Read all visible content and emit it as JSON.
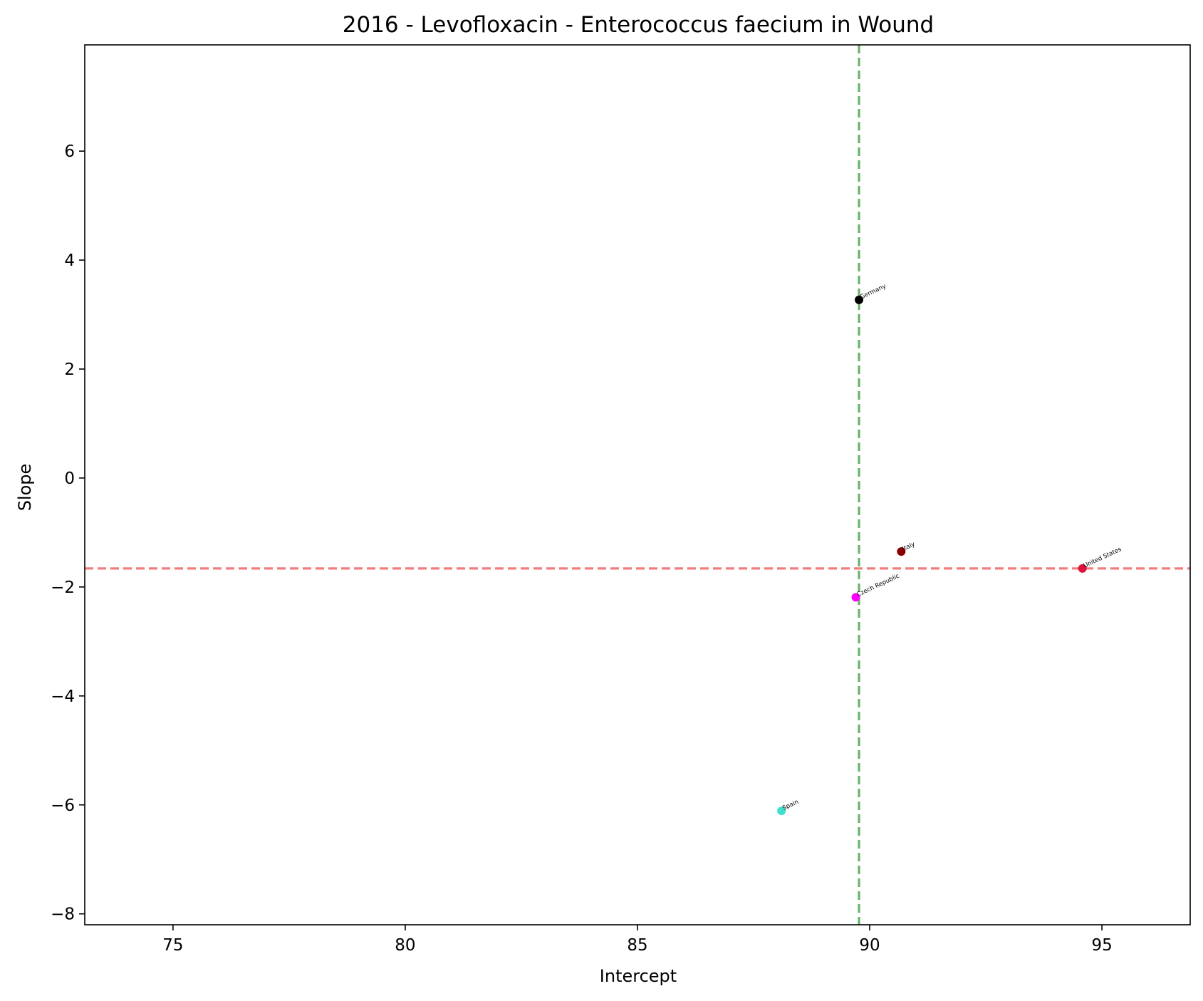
{
  "chart_data": {
    "type": "scatter",
    "title": "2016 - Levofloxacin - Enterococcus faecium in Wound",
    "xlabel": "Intercept",
    "ylabel": "Slope",
    "xlim": [
      73.1,
      96.9
    ],
    "ylim": [
      -8.2,
      7.95
    ],
    "xticks": [
      75,
      80,
      85,
      90,
      95
    ],
    "yticks": [
      -8,
      -6,
      -4,
      -2,
      0,
      2,
      4,
      6
    ],
    "grid": false,
    "legend": "none",
    "points": [
      {
        "label": "Germany",
        "x": 89.77,
        "y": 3.27,
        "color": "#000000"
      },
      {
        "label": "Italy",
        "x": 90.68,
        "y": -1.35,
        "color": "#8b0000"
      },
      {
        "label": "United States",
        "x": 94.58,
        "y": -1.66,
        "color": "#dc143c"
      },
      {
        "label": "Czech Republic",
        "x": 89.7,
        "y": -2.19,
        "color": "#ff00ff"
      },
      {
        "label": "Spain",
        "x": 88.1,
        "y": -6.11,
        "color": "#40e0d0"
      }
    ],
    "reference_lines": [
      {
        "orientation": "vertical",
        "value": 89.77,
        "color": "#5aaa5a",
        "style": "dashed"
      },
      {
        "orientation": "horizontal",
        "value": -1.66,
        "color": "#f07070",
        "style": "dashed"
      }
    ]
  }
}
